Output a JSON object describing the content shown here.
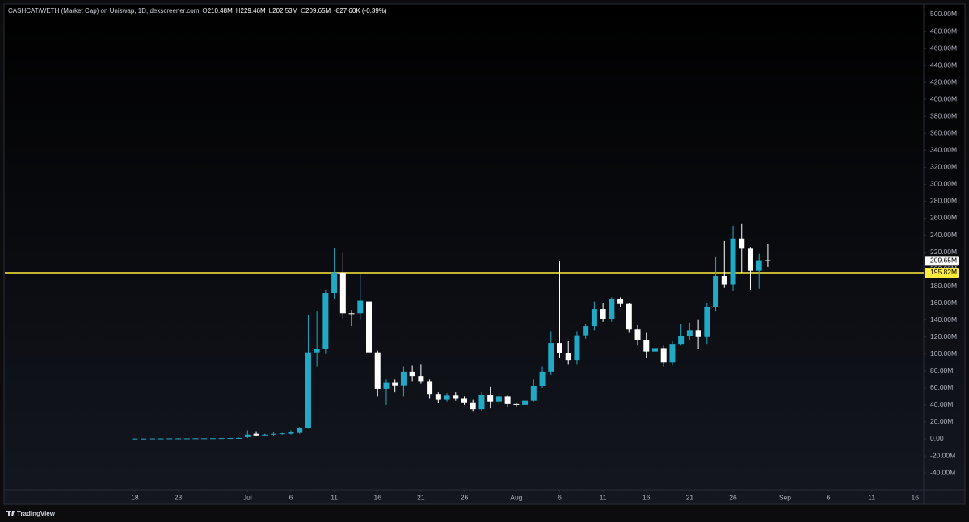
{
  "chart_data": {
    "type": "candlestick",
    "title": "CASHCAT/WETH (Market Cap) on Uniswap, 1D, dexscreener.com",
    "ohlc_legend": [
      {
        "label": "O",
        "value": "210.48M"
      },
      {
        "label": "H",
        "value": "229.46M"
      },
      {
        "label": "L",
        "value": "202.53M"
      },
      {
        "label": "C",
        "value": "209.65M"
      }
    ],
    "change": "-827.60K (-0.39%)",
    "brand": "TradingView",
    "up_color": "#22a9c6",
    "down_color": "#ffffff",
    "x": [
      "06-18",
      "06-19",
      "06-20",
      "06-21",
      "06-22",
      "06-23",
      "06-24",
      "06-25",
      "06-26",
      "06-27",
      "06-28",
      "06-29",
      "06-30",
      "07-01",
      "07-02",
      "07-03",
      "07-04",
      "07-05",
      "07-06",
      "07-07",
      "07-08",
      "07-09",
      "07-10",
      "07-11",
      "07-12",
      "07-13",
      "07-14",
      "07-15",
      "07-16",
      "07-17",
      "07-18",
      "07-19",
      "07-20",
      "07-21",
      "07-22",
      "07-23",
      "07-24",
      "07-25",
      "07-26",
      "07-27",
      "07-28",
      "07-29",
      "07-30",
      "07-31",
      "08-01",
      "08-02",
      "08-03",
      "08-04",
      "08-05",
      "08-06",
      "08-07",
      "08-08",
      "08-09",
      "08-10",
      "08-11",
      "08-12",
      "08-13",
      "08-14",
      "08-15",
      "08-16",
      "08-17",
      "08-18",
      "08-19",
      "08-20",
      "08-21",
      "08-22",
      "08-23",
      "08-24",
      "08-25",
      "08-26",
      "08-27",
      "08-28",
      "08-29",
      "08-30"
    ],
    "open": [
      0.2,
      0.3,
      0.3,
      0.4,
      0.4,
      0.5,
      0.5,
      0.5,
      0.6,
      0.6,
      0.7,
      0.8,
      0.9,
      2,
      6,
      4,
      5,
      6,
      6,
      7,
      13,
      102,
      106,
      172,
      196,
      148,
      148,
      162,
      102,
      59,
      66,
      63,
      79,
      74,
      68,
      53,
      46,
      51,
      48,
      43,
      35,
      52,
      44,
      50,
      41,
      40,
      45,
      62,
      79,
      113,
      101,
      93,
      122,
      133,
      153,
      141,
      165,
      159,
      129,
      116,
      103,
      107,
      90,
      112,
      121,
      128,
      120,
      155,
      192,
      182,
      236,
      224,
      198,
      210.48
    ],
    "high": [
      0.4,
      0.5,
      0.5,
      0.6,
      0.6,
      0.7,
      0.7,
      0.8,
      0.8,
      0.9,
      1,
      1.1,
      1.5,
      10,
      9,
      6,
      8,
      7,
      10,
      14,
      146,
      150,
      175,
      225,
      220,
      152,
      194,
      163,
      104,
      70,
      70,
      85,
      86,
      88,
      70,
      55,
      54,
      55,
      50,
      46,
      55,
      61,
      54,
      52,
      42,
      47,
      70,
      85,
      127,
      210,
      115,
      127,
      135,
      162,
      160,
      167,
      167,
      160,
      134,
      125,
      110,
      110,
      115,
      135,
      137,
      140,
      160,
      215,
      233,
      251,
      253,
      226,
      218,
      229.46
    ],
    "low": [
      0.1,
      0.2,
      0.2,
      0.3,
      0.3,
      0.4,
      0.4,
      0.4,
      0.5,
      0.5,
      0.6,
      0.7,
      0.8,
      1,
      3,
      3,
      4,
      5,
      5,
      6,
      12,
      85,
      100,
      165,
      142,
      133,
      140,
      91,
      50,
      40,
      55,
      50,
      68,
      65,
      48,
      42,
      44,
      45,
      40,
      32,
      33,
      36,
      40,
      38,
      38,
      39,
      44,
      60,
      75,
      95,
      88,
      88,
      118,
      128,
      138,
      138,
      155,
      125,
      110,
      95,
      98,
      85,
      86,
      110,
      117,
      106,
      112,
      150,
      178,
      174,
      196,
      175,
      177,
      202.53
    ],
    "close": [
      0.3,
      0.3,
      0.4,
      0.4,
      0.5,
      0.5,
      0.5,
      0.6,
      0.6,
      0.7,
      0.8,
      0.9,
      1,
      5,
      4,
      5,
      6,
      6.5,
      8,
      13,
      102,
      106,
      172,
      196,
      148,
      147,
      163,
      102,
      59,
      66,
      63,
      79,
      74,
      68,
      53,
      46,
      51,
      48,
      43,
      35,
      52,
      44,
      50,
      41,
      40,
      45,
      62,
      79,
      113,
      101,
      93,
      122,
      133,
      153,
      141,
      165,
      159,
      129,
      116,
      103,
      107,
      90,
      112,
      121,
      128,
      120,
      155,
      192,
      182,
      236,
      224,
      198,
      210.48,
      209.65
    ],
    "xlim": [
      "06-03",
      "09-17"
    ],
    "xticks": [
      {
        "value": "06-18",
        "label": "18"
      },
      {
        "value": "06-23",
        "label": "23"
      },
      {
        "value": "07-01",
        "label": "Jul"
      },
      {
        "value": "07-06",
        "label": "6"
      },
      {
        "value": "07-11",
        "label": "11"
      },
      {
        "value": "07-16",
        "label": "16"
      },
      {
        "value": "07-21",
        "label": "21"
      },
      {
        "value": "07-26",
        "label": "26"
      },
      {
        "value": "08-01",
        "label": "Aug"
      },
      {
        "value": "08-06",
        "label": "6"
      },
      {
        "value": "08-11",
        "label": "11"
      },
      {
        "value": "08-16",
        "label": "16"
      },
      {
        "value": "08-21",
        "label": "21"
      },
      {
        "value": "08-26",
        "label": "26"
      },
      {
        "value": "09-01",
        "label": "Sep"
      },
      {
        "value": "09-06",
        "label": "6"
      },
      {
        "value": "09-11",
        "label": "11"
      },
      {
        "value": "09-16",
        "label": "16"
      }
    ],
    "ylim": [
      -59.9,
      511.4
    ],
    "yticks": [
      {
        "value": -40,
        "label": "-40.00M"
      },
      {
        "value": -20,
        "label": "-20.00M"
      },
      {
        "value": 0,
        "label": "0.00"
      },
      {
        "value": 20,
        "label": "20.00M"
      },
      {
        "value": 40,
        "label": "40.00M"
      },
      {
        "value": 60,
        "label": "60.00M"
      },
      {
        "value": 80,
        "label": "80.00M"
      },
      {
        "value": 100,
        "label": "100.00M"
      },
      {
        "value": 120,
        "label": "120.00M"
      },
      {
        "value": 140,
        "label": "140.00M"
      },
      {
        "value": 160,
        "label": "160.00M"
      },
      {
        "value": 180,
        "label": "180.00M"
      },
      {
        "value": 200,
        "label": "200.00M"
      },
      {
        "value": 220,
        "label": "220.00M"
      },
      {
        "value": 240,
        "label": "240.00M"
      },
      {
        "value": 260,
        "label": "260.00M"
      },
      {
        "value": 280,
        "label": "280.00M"
      },
      {
        "value": 300,
        "label": "300.00M"
      },
      {
        "value": 320,
        "label": "320.00M"
      },
      {
        "value": 340,
        "label": "340.00M"
      },
      {
        "value": 360,
        "label": "360.00M"
      },
      {
        "value": 380,
        "label": "380.00M"
      },
      {
        "value": 400,
        "label": "400.00M"
      },
      {
        "value": 420,
        "label": "420.00M"
      },
      {
        "value": 440,
        "label": "440.00M"
      },
      {
        "value": 460,
        "label": "460.00M"
      },
      {
        "value": 480,
        "label": "480.00M"
      },
      {
        "value": 500,
        "label": "500.00M"
      }
    ],
    "grid": false,
    "last_price": {
      "value": 209.65,
      "label": "209.65M"
    },
    "hline": {
      "value": 195.82,
      "label": "195.82M",
      "color": "#ffeb3b"
    }
  }
}
